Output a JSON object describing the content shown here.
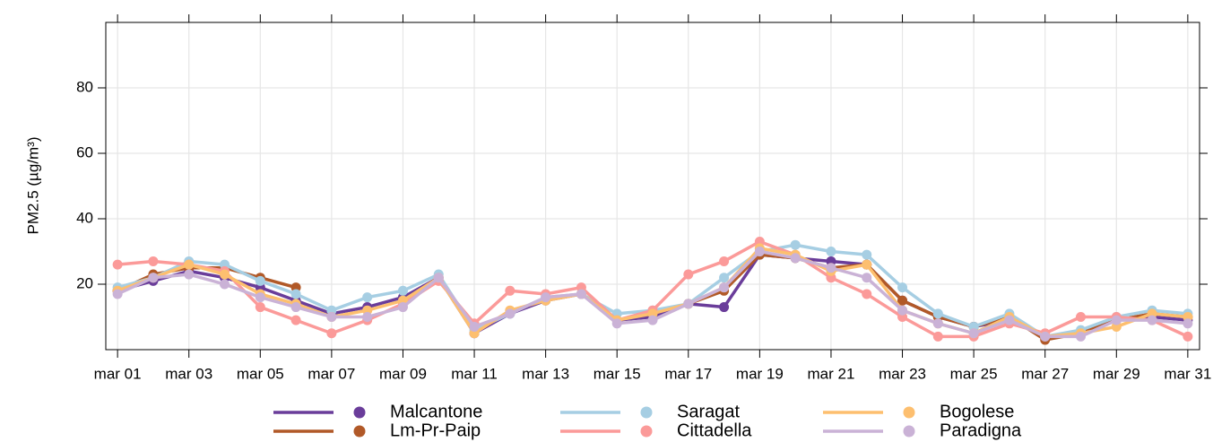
{
  "chart_data": {
    "type": "line",
    "ylabel": "PM2.5 (µg/m³)",
    "x": [
      1,
      2,
      3,
      4,
      5,
      6,
      7,
      8,
      9,
      10,
      11,
      12,
      13,
      14,
      15,
      16,
      17,
      18,
      19,
      20,
      21,
      22,
      23,
      24,
      25,
      26,
      27,
      28,
      29,
      30,
      31
    ],
    "xlim": [
      0.67,
      31.33
    ],
    "xticks": [
      {
        "value": 1,
        "label": "mar 01"
      },
      {
        "value": 3,
        "label": "mar 03"
      },
      {
        "value": 5,
        "label": "mar 05"
      },
      {
        "value": 7,
        "label": "mar 07"
      },
      {
        "value": 9,
        "label": "mar 09"
      },
      {
        "value": 11,
        "label": "mar 11"
      },
      {
        "value": 13,
        "label": "mar 13"
      },
      {
        "value": 15,
        "label": "mar 15"
      },
      {
        "value": 17,
        "label": "mar 17"
      },
      {
        "value": 19,
        "label": "mar 19"
      },
      {
        "value": 21,
        "label": "mar 21"
      },
      {
        "value": 23,
        "label": "mar 23"
      },
      {
        "value": 25,
        "label": "mar 25"
      },
      {
        "value": 27,
        "label": "mar 27"
      },
      {
        "value": 29,
        "label": "mar 29"
      },
      {
        "value": 31,
        "label": "mar 31"
      }
    ],
    "ylim": [
      0,
      100
    ],
    "yticks": [
      20,
      40,
      60,
      80
    ],
    "grid": true,
    "legend": "bottom",
    "series": [
      {
        "name": "Malcantone",
        "color": "#6a3d9a",
        "values": [
          18,
          21,
          24,
          22,
          19,
          15,
          11,
          13,
          16,
          22,
          5,
          11,
          15,
          17,
          9,
          10,
          14,
          13,
          29,
          28,
          27,
          26,
          15,
          10,
          7,
          9,
          4,
          5,
          9,
          10,
          9
        ]
      },
      {
        "name": "Lm-Pr-Paip",
        "color": "#b15928",
        "values": [
          18,
          23,
          25,
          25,
          22,
          19,
          null,
          null,
          null,
          null,
          null,
          null,
          null,
          null,
          null,
          null,
          14,
          18,
          29,
          28,
          25,
          26,
          15,
          10,
          7,
          10,
          3,
          5,
          9,
          11,
          10
        ]
      },
      {
        "name": "Saragat",
        "color": "#a6cee3",
        "values": [
          19,
          22,
          27,
          26,
          21,
          17,
          12,
          16,
          18,
          23,
          6,
          11,
          16,
          17,
          11,
          12,
          14,
          22,
          30,
          32,
          30,
          29,
          19,
          11,
          7,
          11,
          4,
          6,
          10,
          12,
          11
        ]
      },
      {
        "name": "Cittadella",
        "color": "#fb9a99",
        "values": [
          26,
          27,
          26,
          24,
          13,
          9,
          5,
          9,
          14,
          21,
          8,
          18,
          17,
          19,
          9,
          12,
          23,
          27,
          33,
          29,
          22,
          17,
          10,
          4,
          4,
          8,
          5,
          10,
          10,
          9,
          4
        ]
      },
      {
        "name": "Bogolese",
        "color": "#fdbf6f",
        "values": [
          18,
          22,
          26,
          23,
          17,
          14,
          10,
          12,
          15,
          22,
          5,
          12,
          15,
          17,
          9,
          11,
          14,
          19,
          31,
          29,
          24,
          26,
          12,
          8,
          5,
          10,
          4,
          5,
          7,
          11,
          10
        ]
      },
      {
        "name": "Paradigna",
        "color": "#cab2d6",
        "values": [
          17,
          22,
          23,
          20,
          16,
          13,
          10,
          10,
          13,
          22,
          7,
          11,
          16,
          17,
          8,
          9,
          14,
          19,
          30,
          28,
          25,
          22,
          12,
          8,
          5,
          9,
          4,
          4,
          9,
          9,
          8
        ]
      }
    ]
  }
}
